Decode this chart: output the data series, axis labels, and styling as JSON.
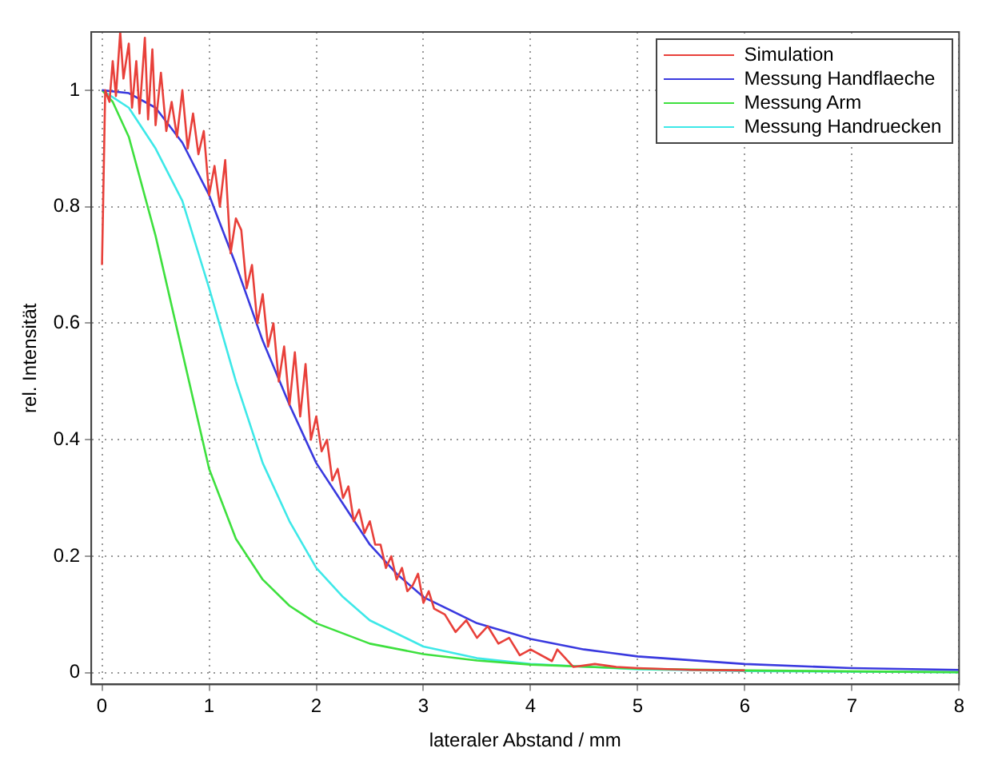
{
  "chart_data": {
    "type": "line",
    "xlabel": "lateraler Abstand / mm",
    "ylabel": "rel. Intensität",
    "xlim": [
      -0.1,
      8
    ],
    "ylim": [
      -0.02,
      1.1
    ],
    "xticks": [
      0,
      1,
      2,
      3,
      4,
      5,
      6,
      7,
      8
    ],
    "yticks": [
      0,
      0.2,
      0.4,
      0.6,
      0.8,
      1
    ],
    "grid": true,
    "legend": "top right",
    "marker": "none",
    "line_style": "solid",
    "series": [
      {
        "name": "Simulation",
        "color": "#e8403a",
        "x": [
          0,
          0.03,
          0.07,
          0.1,
          0.13,
          0.17,
          0.2,
          0.25,
          0.28,
          0.32,
          0.35,
          0.4,
          0.43,
          0.47,
          0.5,
          0.55,
          0.6,
          0.65,
          0.7,
          0.75,
          0.8,
          0.85,
          0.9,
          0.95,
          1.0,
          1.05,
          1.1,
          1.15,
          1.2,
          1.25,
          1.3,
          1.35,
          1.4,
          1.45,
          1.5,
          1.55,
          1.6,
          1.65,
          1.7,
          1.75,
          1.8,
          1.85,
          1.9,
          1.95,
          2.0,
          2.05,
          2.1,
          2.15,
          2.2,
          2.25,
          2.3,
          2.35,
          2.4,
          2.45,
          2.5,
          2.55,
          2.6,
          2.65,
          2.7,
          2.75,
          2.8,
          2.85,
          2.9,
          2.95,
          3.0,
          3.05,
          3.1,
          3.2,
          3.3,
          3.4,
          3.5,
          3.6,
          3.7,
          3.8,
          3.9,
          4.0,
          4.2,
          4.25,
          4.4,
          4.6,
          4.8,
          5.0,
          5.5,
          6
        ],
        "values": [
          0.7,
          1.0,
          0.98,
          1.05,
          0.99,
          1.1,
          1.02,
          1.08,
          0.97,
          1.05,
          0.96,
          1.09,
          0.95,
          1.07,
          0.94,
          1.03,
          0.93,
          0.98,
          0.92,
          1.0,
          0.9,
          0.96,
          0.89,
          0.93,
          0.82,
          0.87,
          0.8,
          0.88,
          0.72,
          0.78,
          0.76,
          0.66,
          0.7,
          0.6,
          0.65,
          0.56,
          0.6,
          0.5,
          0.56,
          0.46,
          0.55,
          0.44,
          0.53,
          0.4,
          0.44,
          0.38,
          0.4,
          0.33,
          0.35,
          0.3,
          0.32,
          0.26,
          0.28,
          0.24,
          0.26,
          0.22,
          0.22,
          0.18,
          0.2,
          0.16,
          0.18,
          0.14,
          0.15,
          0.17,
          0.12,
          0.14,
          0.11,
          0.1,
          0.07,
          0.09,
          0.06,
          0.08,
          0.05,
          0.06,
          0.03,
          0.04,
          0.02,
          0.04,
          0.01,
          0.015,
          0.01,
          0.008,
          0.005,
          0.004
        ]
      },
      {
        "name": "Messung Handflaeche",
        "color": "#3a3adf",
        "x": [
          0,
          0.25,
          0.5,
          0.75,
          1,
          1.25,
          1.5,
          1.75,
          2,
          2.25,
          2.5,
          2.75,
          3,
          3.5,
          4,
          4.5,
          5,
          6,
          7,
          8
        ],
        "values": [
          1,
          0.995,
          0.97,
          0.91,
          0.82,
          0.7,
          0.57,
          0.46,
          0.36,
          0.29,
          0.22,
          0.17,
          0.13,
          0.085,
          0.058,
          0.04,
          0.028,
          0.015,
          0.008,
          0.005
        ]
      },
      {
        "name": "Messung Arm",
        "color": "#3ee03e",
        "x": [
          0,
          0.1,
          0.25,
          0.5,
          0.75,
          1,
          1.25,
          1.5,
          1.75,
          2,
          2.5,
          3,
          3.5,
          4,
          5,
          6,
          8
        ],
        "values": [
          1,
          0.98,
          0.92,
          0.75,
          0.55,
          0.35,
          0.23,
          0.16,
          0.115,
          0.085,
          0.05,
          0.032,
          0.021,
          0.014,
          0.007,
          0.004,
          0.001
        ]
      },
      {
        "name": "Messung Handruecken",
        "color": "#3ee8e8",
        "x": [
          0,
          0.25,
          0.5,
          0.75,
          1,
          1.25,
          1.5,
          1.75,
          2,
          2.25,
          2.5,
          3,
          3.5,
          4,
          5,
          6,
          8
        ],
        "values": [
          1,
          0.97,
          0.9,
          0.81,
          0.66,
          0.5,
          0.36,
          0.26,
          0.18,
          0.13,
          0.09,
          0.045,
          0.025,
          0.015,
          0.006,
          0.003,
          0.001
        ]
      }
    ]
  }
}
